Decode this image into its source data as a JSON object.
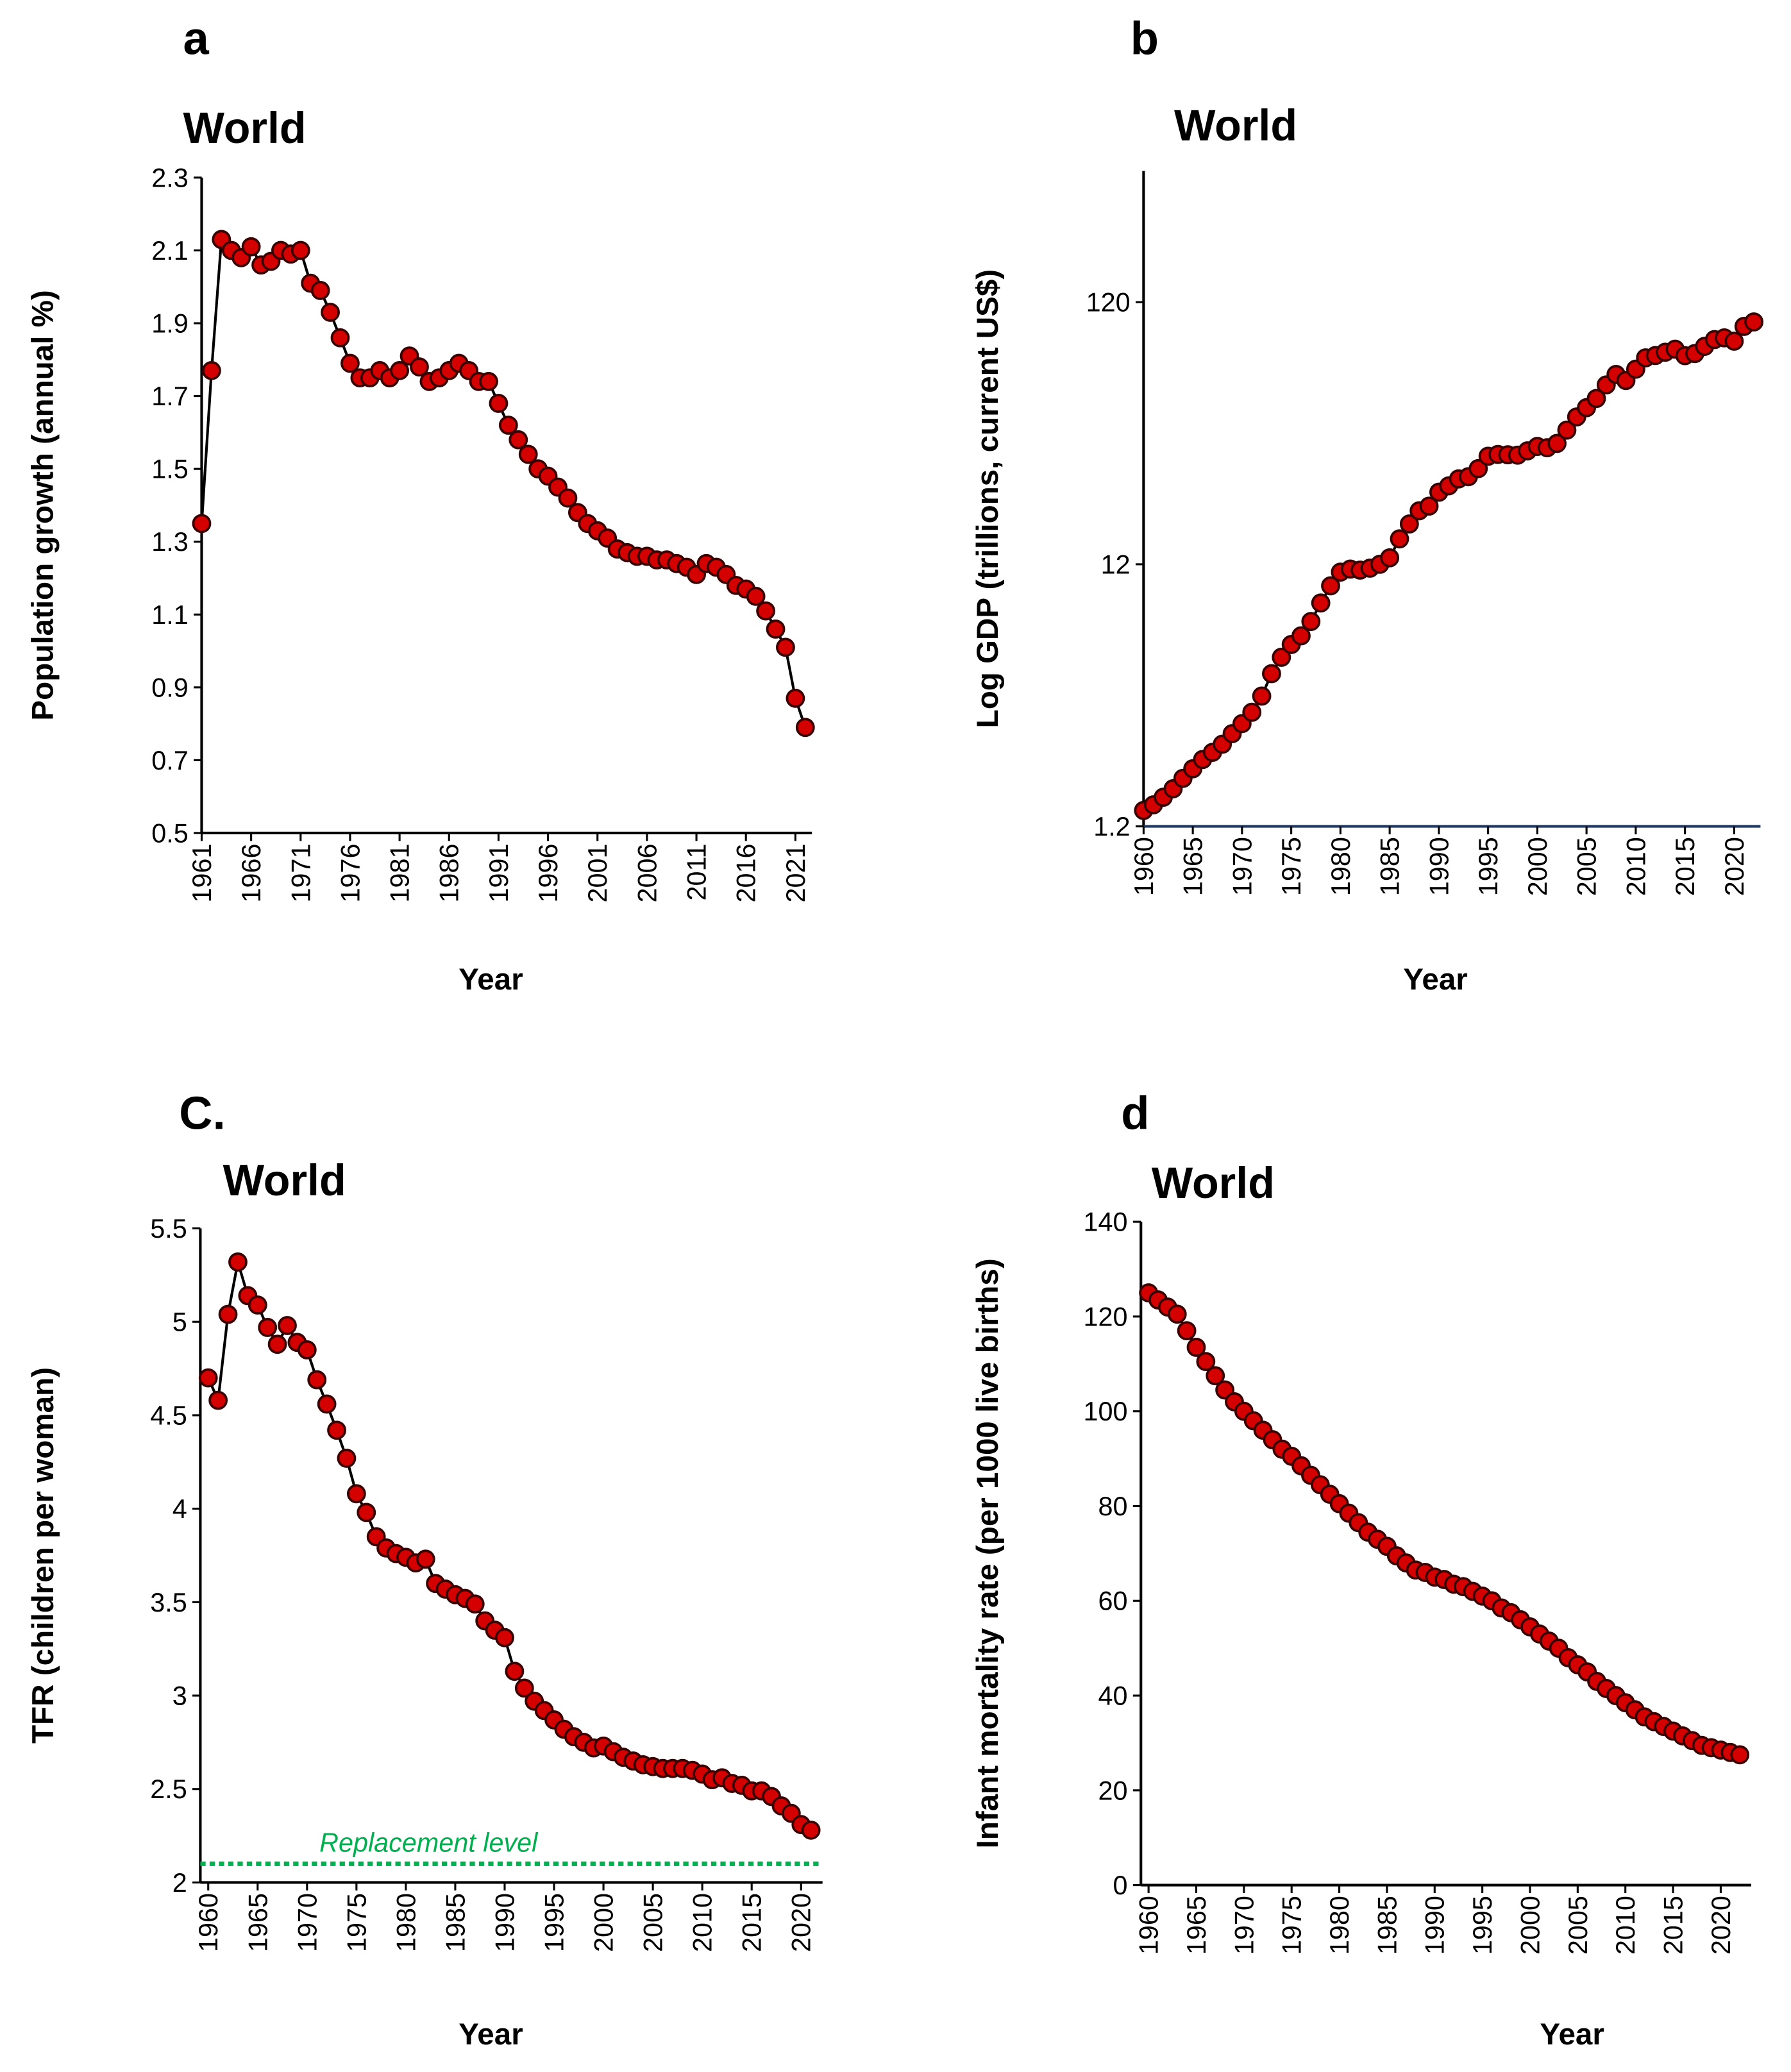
{
  "chart_data": [
    {
      "type": "line",
      "panel_label": "a",
      "title": "World",
      "x_label": "Year",
      "y_label": "Population growth (annual %)",
      "x": [
        1961,
        1962,
        1963,
        1964,
        1965,
        1966,
        1967,
        1968,
        1969,
        1970,
        1971,
        1972,
        1973,
        1974,
        1975,
        1976,
        1977,
        1978,
        1979,
        1980,
        1981,
        1982,
        1983,
        1984,
        1985,
        1986,
        1987,
        1988,
        1989,
        1990,
        1991,
        1992,
        1993,
        1994,
        1995,
        1996,
        1997,
        1998,
        1999,
        2000,
        2001,
        2002,
        2003,
        2004,
        2005,
        2006,
        2007,
        2008,
        2009,
        2010,
        2011,
        2012,
        2013,
        2014,
        2015,
        2016,
        2017,
        2018,
        2019,
        2020,
        2021,
        2022
      ],
      "values": [
        1.35,
        1.77,
        2.13,
        2.1,
        2.08,
        2.11,
        2.06,
        2.07,
        2.1,
        2.09,
        2.1,
        2.01,
        1.99,
        1.93,
        1.86,
        1.79,
        1.75,
        1.75,
        1.77,
        1.75,
        1.77,
        1.81,
        1.78,
        1.74,
        1.75,
        1.77,
        1.79,
        1.77,
        1.74,
        1.74,
        1.68,
        1.62,
        1.58,
        1.54,
        1.5,
        1.48,
        1.45,
        1.42,
        1.38,
        1.35,
        1.33,
        1.31,
        1.28,
        1.27,
        1.26,
        1.26,
        1.25,
        1.25,
        1.24,
        1.23,
        1.21,
        1.24,
        1.23,
        1.21,
        1.18,
        1.17,
        1.15,
        1.11,
        1.06,
        1.01,
        0.87,
        0.79
      ],
      "color": "#d40000",
      "xlim": [
        1961,
        2022
      ],
      "xticks": [
        1961,
        1966,
        1971,
        1976,
        1981,
        1986,
        1991,
        1996,
        2001,
        2006,
        2011,
        2016,
        2021
      ],
      "ylim": [
        0.5,
        2.3
      ],
      "yticks": [
        0.5,
        0.7,
        0.9,
        1.1,
        1.3,
        1.5,
        1.7,
        1.9,
        2.1,
        2.3
      ],
      "log_scale": false,
      "grid": false
    },
    {
      "type": "line",
      "panel_label": "b",
      "title": "World",
      "x_label": "Year",
      "y_label": "Log GDP (trillions, current US$)",
      "x": [
        1960,
        1961,
        1962,
        1963,
        1964,
        1965,
        1966,
        1967,
        1968,
        1969,
        1970,
        1971,
        1972,
        1973,
        1974,
        1975,
        1976,
        1977,
        1978,
        1979,
        1980,
        1981,
        1982,
        1983,
        1984,
        1985,
        1986,
        1987,
        1988,
        1989,
        1990,
        1991,
        1992,
        1993,
        1994,
        1995,
        1996,
        1997,
        1998,
        1999,
        2000,
        2001,
        2002,
        2003,
        2004,
        2005,
        2006,
        2007,
        2008,
        2009,
        2010,
        2011,
        2012,
        2013,
        2014,
        2015,
        2016,
        2017,
        2018,
        2019,
        2020,
        2021,
        2022
      ],
      "values": [
        1.38,
        1.45,
        1.55,
        1.67,
        1.83,
        1.99,
        2.16,
        2.3,
        2.47,
        2.71,
        2.96,
        3.27,
        3.77,
        4.59,
        5.3,
        5.93,
        6.4,
        7.26,
        8.54,
        9.93,
        11.2,
        11.5,
        11.4,
        11.6,
        12.0,
        12.7,
        15.0,
        17.1,
        19.2,
        20.0,
        22.6,
        23.9,
        25.4,
        25.9,
        27.8,
        31.0,
        31.5,
        31.4,
        31.3,
        32.5,
        33.8,
        33.4,
        34.7,
        39.0,
        43.8,
        47.5,
        51.5,
        58.0,
        63.6,
        60.3,
        66.6,
        73.6,
        75.1,
        77.3,
        79.4,
        75.0,
        76.4,
        81.4,
        86.4,
        87.7,
        85.2,
        97.0,
        100.9
      ],
      "color": "#d40000",
      "xlim": [
        1960,
        2022
      ],
      "xticks": [
        1960,
        1965,
        1970,
        1975,
        1980,
        1985,
        1990,
        1995,
        2000,
        2005,
        2010,
        2015,
        2020
      ],
      "ylim": [
        1.2,
        380
      ],
      "yticks": [
        1.2,
        12,
        120
      ],
      "log_scale": true,
      "grid": false
    },
    {
      "type": "line",
      "panel_label": "C.",
      "title": "World",
      "x_label": "Year",
      "y_label": "TFR (children per woman)",
      "x": [
        1960,
        1961,
        1962,
        1963,
        1964,
        1965,
        1966,
        1967,
        1968,
        1969,
        1970,
        1971,
        1972,
        1973,
        1974,
        1975,
        1976,
        1977,
        1978,
        1979,
        1980,
        1981,
        1982,
        1983,
        1984,
        1985,
        1986,
        1987,
        1988,
        1989,
        1990,
        1991,
        1992,
        1993,
        1994,
        1995,
        1996,
        1997,
        1998,
        1999,
        2000,
        2001,
        2002,
        2003,
        2004,
        2005,
        2006,
        2007,
        2008,
        2009,
        2010,
        2011,
        2012,
        2013,
        2014,
        2015,
        2016,
        2017,
        2018,
        2019,
        2020,
        2021
      ],
      "values": [
        4.7,
        4.58,
        5.04,
        5.32,
        5.14,
        5.09,
        4.97,
        4.88,
        4.98,
        4.89,
        4.85,
        4.69,
        4.56,
        4.42,
        4.27,
        4.08,
        3.98,
        3.85,
        3.79,
        3.76,
        3.74,
        3.71,
        3.73,
        3.6,
        3.57,
        3.54,
        3.52,
        3.49,
        3.4,
        3.35,
        3.31,
        3.13,
        3.04,
        2.97,
        2.92,
        2.87,
        2.82,
        2.78,
        2.75,
        2.72,
        2.73,
        2.7,
        2.67,
        2.65,
        2.63,
        2.62,
        2.61,
        2.61,
        2.61,
        2.6,
        2.58,
        2.55,
        2.56,
        2.53,
        2.52,
        2.49,
        2.49,
        2.46,
        2.41,
        2.37,
        2.31,
        2.28
      ],
      "color": "#d40000",
      "xlim": [
        1959.2,
        2021.5
      ],
      "xticks": [
        1960,
        1965,
        1970,
        1975,
        1980,
        1985,
        1990,
        1995,
        2000,
        2005,
        2010,
        2015,
        2020
      ],
      "ylim": [
        2,
        5.5
      ],
      "yticks": [
        2,
        2.5,
        3,
        3.5,
        4,
        4.5,
        5,
        5.5
      ],
      "log_scale": false,
      "grid": false,
      "reference_line": {
        "value": 2.1,
        "label": "Replacement level",
        "color": "#00b050"
      }
    },
    {
      "type": "line",
      "panel_label": "d",
      "title": "World",
      "x_label": "Year",
      "y_label": "Infant mortality rate (per 1000 live births)",
      "x": [
        1960,
        1961,
        1962,
        1963,
        1964,
        1965,
        1966,
        1967,
        1968,
        1969,
        1970,
        1971,
        1972,
        1973,
        1974,
        1975,
        1976,
        1977,
        1978,
        1979,
        1980,
        1981,
        1982,
        1983,
        1984,
        1985,
        1986,
        1987,
        1988,
        1989,
        1990,
        1991,
        1992,
        1993,
        1994,
        1995,
        1996,
        1997,
        1998,
        1999,
        2000,
        2001,
        2002,
        2003,
        2004,
        2005,
        2006,
        2007,
        2008,
        2009,
        2010,
        2011,
        2012,
        2013,
        2014,
        2015,
        2016,
        2017,
        2018,
        2019,
        2020,
        2021,
        2022
      ],
      "values": [
        125,
        123.5,
        122,
        120.5,
        117,
        113.5,
        110.5,
        107.5,
        104.5,
        102,
        100,
        98,
        96,
        94,
        92,
        90.5,
        88.5,
        86.5,
        84.5,
        82.5,
        80.5,
        78.5,
        76.5,
        74.5,
        73,
        71.5,
        69.5,
        68,
        66.5,
        66,
        65,
        64.5,
        63.5,
        63,
        62,
        61,
        60,
        58.5,
        57.5,
        56,
        54.5,
        53,
        51.5,
        50,
        48,
        46.5,
        45,
        43,
        41.5,
        40,
        38.5,
        37,
        35.5,
        34.5,
        33.5,
        32.5,
        31.5,
        30.5,
        29.5,
        29,
        28.5,
        28,
        27.5
      ],
      "color": "#d40000",
      "xlim": [
        1959.2,
        2022.5
      ],
      "xticks": [
        1960,
        1965,
        1970,
        1975,
        1980,
        1985,
        1990,
        1995,
        2000,
        2005,
        2010,
        2015,
        2020
      ],
      "ylim": [
        0,
        140
      ],
      "yticks": [
        0,
        20,
        40,
        60,
        80,
        100,
        120,
        140
      ],
      "log_scale": false,
      "grid": false
    }
  ]
}
